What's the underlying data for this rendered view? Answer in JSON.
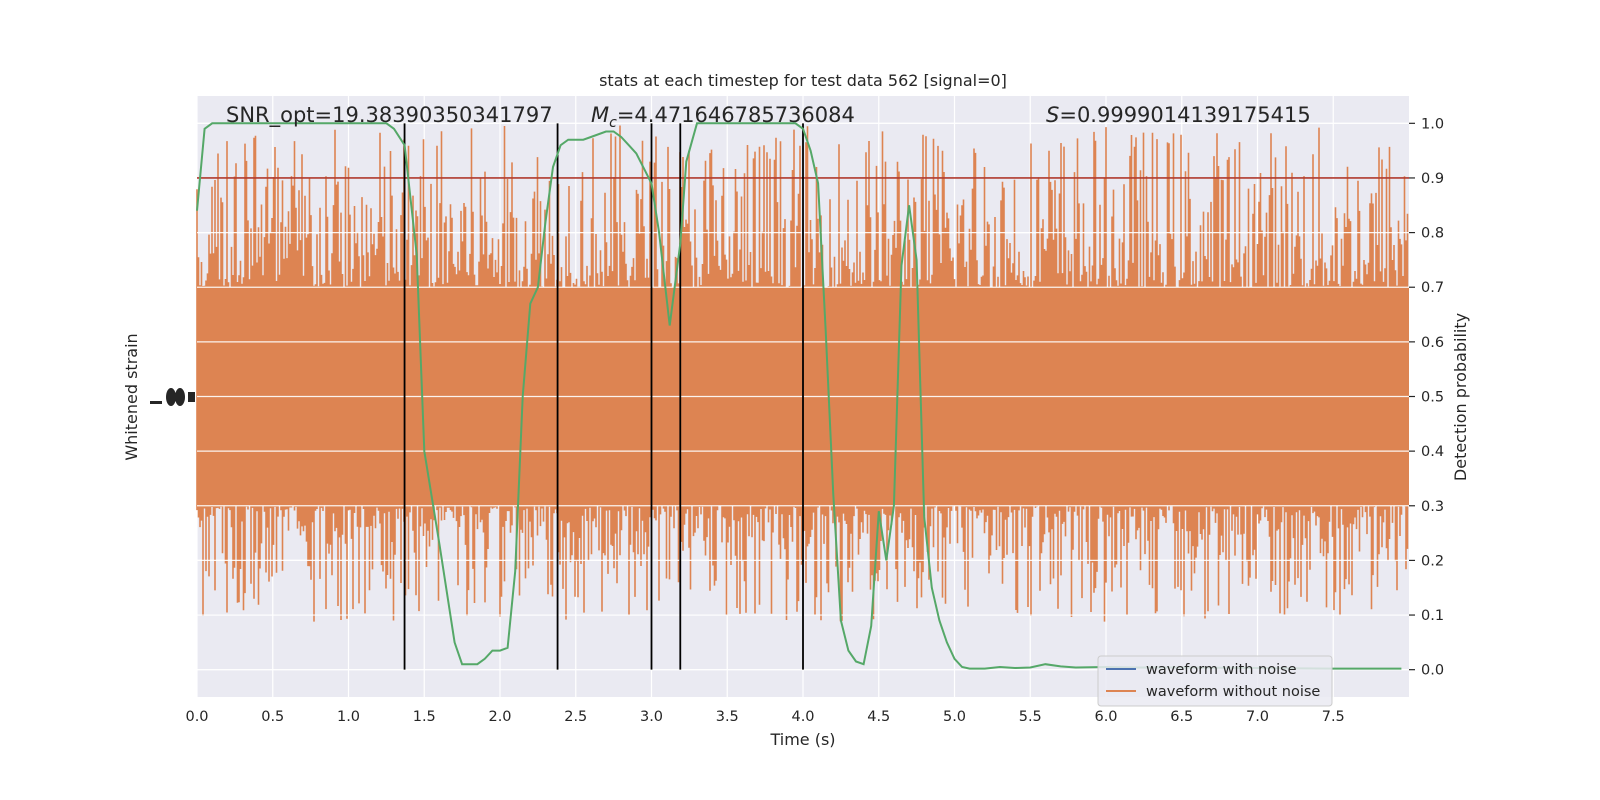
{
  "chart_data": {
    "type": "line",
    "title": "stats at each timestep for test data 562 [signal=0]",
    "xlabel": "Time (s)",
    "ylabel_left": "Whitened strain",
    "ylabel_right": "Detection probability",
    "xlim": [
      0.0,
      8.0
    ],
    "ylim_right": [
      -0.05,
      1.05
    ],
    "x_ticks": [
      "0.0",
      "0.5",
      "1.0",
      "1.5",
      "2.0",
      "2.5",
      "3.0",
      "3.5",
      "4.0",
      "4.5",
      "5.0",
      "5.5",
      "6.0",
      "6.5",
      "7.0",
      "7.5"
    ],
    "x_tick_values": [
      0.0,
      0.5,
      1.0,
      1.5,
      2.0,
      2.5,
      3.0,
      3.5,
      4.0,
      4.5,
      5.0,
      5.5,
      6.0,
      6.5,
      7.0,
      7.5
    ],
    "y_right_ticks": [
      "0.0",
      "0.1",
      "0.2",
      "0.3",
      "0.4",
      "0.5",
      "0.6",
      "0.7",
      "0.8",
      "0.9",
      "1.0"
    ],
    "y_right_tick_values": [
      0.0,
      0.1,
      0.2,
      0.3,
      0.4,
      0.5,
      0.6,
      0.7,
      0.8,
      0.9,
      1.0
    ],
    "grid": true,
    "threshold": 0.9,
    "vlines": [
      1.37,
      2.38,
      3.0,
      3.19,
      4.0
    ],
    "annotations": {
      "snr": "SNR_opt=19.38390350341797",
      "mc_symbol": "M",
      "mc_sub": "c",
      "mc_value": "=4.471646785736084",
      "s_symbol": "S",
      "s_value": "=0.9999014139175415"
    },
    "legend_placement": "lower right",
    "series": [
      {
        "name": "waveform with noise",
        "color": "#4c72b0",
        "axis": "left"
      },
      {
        "name": "waveform without noise",
        "color": "#dd8452",
        "axis": "left",
        "band_probability_range": [
          0.05,
          1.0
        ],
        "dense_probability_range": [
          0.3,
          0.7
        ]
      },
      {
        "name": "detection probability",
        "color": "#55a868",
        "axis": "right",
        "x": [
          0.0,
          0.05,
          0.1,
          0.2,
          0.3,
          0.5,
          0.7,
          0.9,
          1.1,
          1.25,
          1.3,
          1.37,
          1.45,
          1.5,
          1.6,
          1.7,
          1.75,
          1.8,
          1.85,
          1.9,
          1.95,
          2.0,
          2.05,
          2.1,
          2.15,
          2.2,
          2.25,
          2.3,
          2.35,
          2.4,
          2.45,
          2.5,
          2.55,
          2.6,
          2.7,
          2.75,
          2.8,
          2.85,
          2.9,
          3.0,
          3.05,
          3.12,
          3.19,
          3.23,
          3.27,
          3.3,
          3.5,
          3.8,
          3.95,
          4.0,
          4.05,
          4.1,
          4.15,
          4.2,
          4.25,
          4.3,
          4.35,
          4.4,
          4.45,
          4.5,
          4.55,
          4.6,
          4.65,
          4.7,
          4.75,
          4.8,
          4.85,
          4.9,
          4.95,
          5.0,
          5.05,
          5.1,
          5.15,
          5.2,
          5.3,
          5.4,
          5.5,
          5.6,
          5.7,
          5.8,
          6.0,
          6.2,
          6.5,
          7.0,
          7.5,
          7.95
        ],
        "y": [
          0.84,
          0.99,
          1.0,
          1.0,
          1.0,
          1.0,
          1.0,
          1.0,
          1.0,
          1.0,
          0.99,
          0.96,
          0.76,
          0.4,
          0.23,
          0.05,
          0.01,
          0.01,
          0.01,
          0.02,
          0.035,
          0.035,
          0.04,
          0.18,
          0.5,
          0.67,
          0.7,
          0.82,
          0.92,
          0.96,
          0.97,
          0.97,
          0.97,
          0.975,
          0.985,
          0.985,
          0.975,
          0.96,
          0.945,
          0.89,
          0.8,
          0.63,
          0.78,
          0.93,
          0.97,
          1.0,
          1.0,
          1.0,
          1.0,
          0.99,
          0.95,
          0.89,
          0.62,
          0.32,
          0.09,
          0.035,
          0.015,
          0.01,
          0.08,
          0.29,
          0.2,
          0.3,
          0.74,
          0.85,
          0.75,
          0.28,
          0.15,
          0.09,
          0.05,
          0.02,
          0.005,
          0.002,
          0.002,
          0.002,
          0.005,
          0.003,
          0.004,
          0.01,
          0.006,
          0.004,
          0.005,
          0.004,
          0.004,
          0.003,
          0.002,
          0.002
        ]
      }
    ]
  }
}
